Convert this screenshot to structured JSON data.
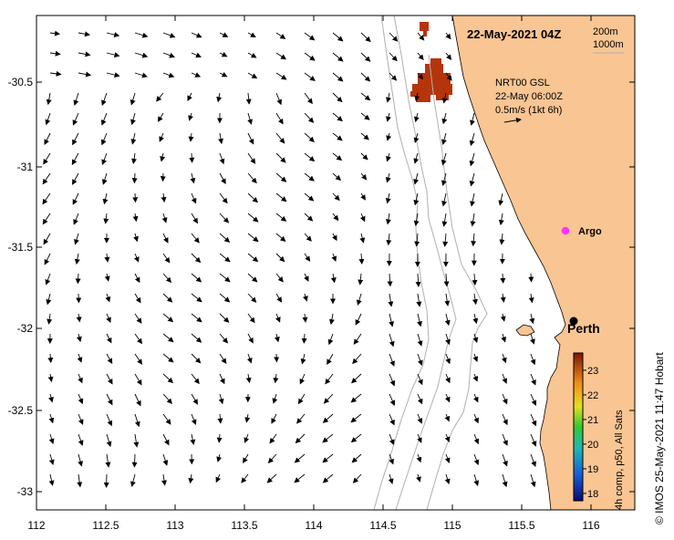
{
  "title": "22-May-2021 04Z",
  "depth_legend": [
    "200m",
    "1000m"
  ],
  "vector_legend": {
    "source": "NRT00 GSL",
    "time": "22-May 06:00Z",
    "scale": "0.5m/s (1kt 6h)"
  },
  "markers": {
    "argo_label": "Argo",
    "city_label": "Perth"
  },
  "colorbar": {
    "label": "4h comp, p50, All Sats",
    "ticks": [
      "18",
      "19",
      "20",
      "21",
      "22",
      "23"
    ],
    "min": 17.7,
    "max": 23.7
  },
  "credit": "© IMOS 25-May-2021 11:47 Hobart",
  "axes": {
    "x_ticks": [
      "112",
      "112.5",
      "113",
      "113.5",
      "114",
      "114.5",
      "115",
      "115.5",
      "116"
    ],
    "y_ticks": [
      "-30.5",
      "-31",
      "-31.5",
      "-32",
      "-32.5",
      "-33"
    ],
    "x_range": [
      112,
      116.3
    ],
    "y_range": [
      -33.1,
      -30.08
    ]
  },
  "colors": {
    "land": "#f9c593",
    "sst_patch": "#b5340c",
    "argo": "#ff33ff",
    "bathymetry": "#b0b0b0"
  }
}
